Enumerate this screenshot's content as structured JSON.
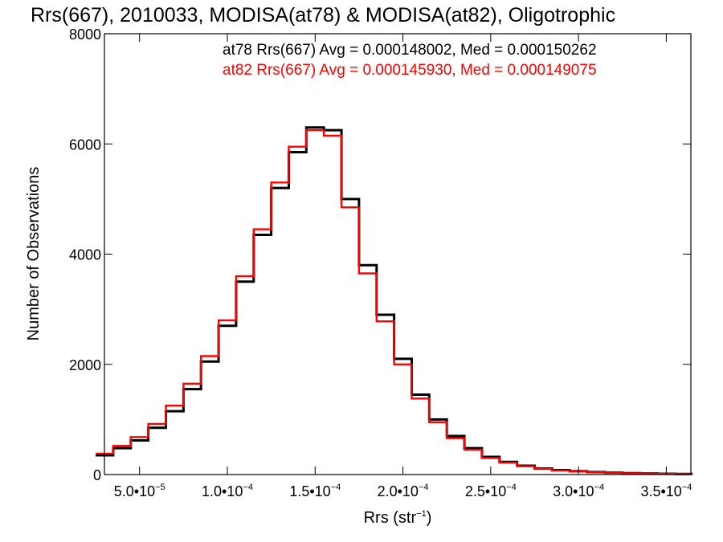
{
  "chart_data": {
    "type": "histogram",
    "title": "Rrs(667), 2010033, MODISA(at78) & MODISA(at82), Oligotrophic",
    "xlabel": {
      "text": "Rrs (str",
      "sup": "−1",
      "close": ")"
    },
    "ylabel": "Number of Observations",
    "xlim": [
      3e-05,
      0.000364
    ],
    "ylim": [
      0,
      8000
    ],
    "grid": false,
    "x_ticks": [
      {
        "value": 5e-05,
        "mant": "5.0•10",
        "exp": "−5"
      },
      {
        "value": 0.0001,
        "mant": "1.0•10",
        "exp": "−4"
      },
      {
        "value": 0.00015,
        "mant": "1.5•10",
        "exp": "−4"
      },
      {
        "value": 0.0002,
        "mant": "2.0•10",
        "exp": "−4"
      },
      {
        "value": 0.00025,
        "mant": "2.5•10",
        "exp": "−4"
      },
      {
        "value": 0.0003,
        "mant": "3.0•10",
        "exp": "−4"
      },
      {
        "value": 0.00035,
        "mant": "3.5•10",
        "exp": "−4"
      }
    ],
    "y_ticks": [
      {
        "value": 0,
        "label": "0"
      },
      {
        "value": 2000,
        "label": "2000"
      },
      {
        "value": 4000,
        "label": "4000"
      },
      {
        "value": 6000,
        "label": "6000"
      },
      {
        "value": 8000,
        "label": "8000"
      }
    ],
    "annotations": [
      {
        "text": "at78 Rrs(667) Avg = 0.000148002, Med = 0.000150262",
        "color": "#000000"
      },
      {
        "text": "at82 Rrs(667) Avg = 0.000145930, Med = 0.000149075",
        "color": "#ff0000"
      }
    ],
    "series": [
      {
        "color": "#000000",
        "x": [
          3e-05,
          4e-05,
          5e-05,
          6e-05,
          7e-05,
          8e-05,
          9e-05,
          0.0001,
          0.00011,
          0.00012,
          0.00013,
          0.00014,
          0.00015,
          0.00016,
          0.00017,
          0.00018,
          0.00019,
          0.0002,
          0.00021,
          0.00022,
          0.00023,
          0.00024,
          0.00025,
          0.00026,
          0.00027,
          0.00028,
          0.00029,
          0.0003,
          0.00031,
          0.00032,
          0.00033,
          0.00034,
          0.00035,
          0.00036
        ],
        "y": [
          350,
          480,
          620,
          850,
          1150,
          1550,
          2050,
          2700,
          3500,
          4350,
          5200,
          5850,
          6300,
          6250,
          5000,
          3800,
          2900,
          2100,
          1450,
          1000,
          700,
          480,
          320,
          230,
          160,
          110,
          80,
          60,
          45,
          35,
          25,
          20,
          15,
          10
        ]
      },
      {
        "color": "#ff0000",
        "x": [
          3e-05,
          4e-05,
          5e-05,
          6e-05,
          7e-05,
          8e-05,
          9e-05,
          0.0001,
          0.00011,
          0.00012,
          0.00013,
          0.00014,
          0.00015,
          0.00016,
          0.00017,
          0.00018,
          0.00019,
          0.0002,
          0.00021,
          0.00022,
          0.00023,
          0.00024,
          0.00025,
          0.00026,
          0.00027,
          0.00028,
          0.00029,
          0.0003,
          0.00031,
          0.00032,
          0.00033,
          0.00034,
          0.00035,
          0.00036
        ],
        "y": [
          380,
          520,
          680,
          920,
          1250,
          1650,
          2150,
          2800,
          3600,
          4450,
          5300,
          5950,
          6250,
          6150,
          4850,
          3650,
          2780,
          2000,
          1380,
          950,
          660,
          450,
          300,
          215,
          150,
          105,
          75,
          55,
          42,
          32,
          23,
          18,
          13,
          9
        ]
      }
    ]
  }
}
